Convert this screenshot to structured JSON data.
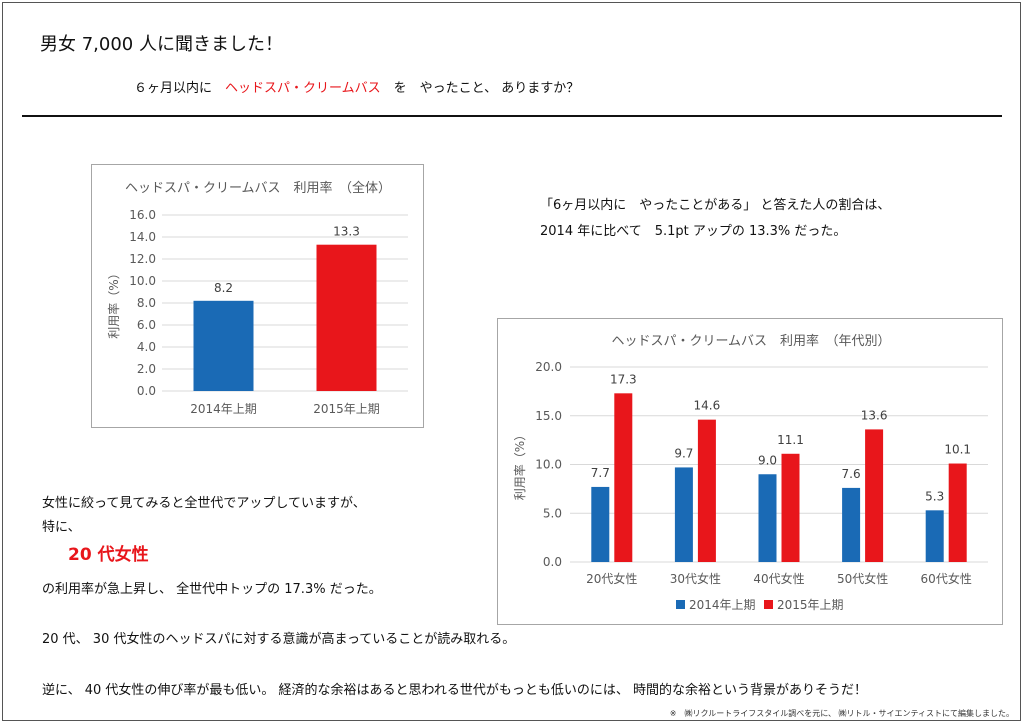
{
  "page": {
    "title": "男女 7,000 人に聞きました！",
    "question": {
      "prefix": "６ヶ月以内に　",
      "highlight": "ヘッドスパ・クリームバス",
      "suffix": "　を　やったこと、 ありますか？"
    },
    "summary": {
      "line1": "「6ヶ月以内に　やったことがある」 と答えた人の割合は、",
      "line2": "2014 年に比べて　5.1pt アップの 13.3% だった。"
    },
    "body": {
      "line1": "女性に絞って見てみると全世代でアップしていますが、",
      "line2": "特に、",
      "highlight": "20 代女性",
      "line3": "の利用率が急上昇し、 全世代中トップの 17.3% だった。",
      "line4": "20 代、 30 代女性のヘッドスパに対する意識が高まっていることが読み取れる。",
      "line5": "逆に、 40 代女性の伸び率が最も低い。 経済的な余裕はあると思われる世代がもっとも低いのには、 時間的な余裕という背景がありそうだ！"
    },
    "source": "※　㈱リクルートライフスタイル調べを元に、 ㈱リトル・サイエンティストにて編集しました。"
  },
  "colors": {
    "series_2014": "#1a6ab5",
    "series_2015": "#e8161b",
    "accent": "#e8161b"
  },
  "chart_data": [
    {
      "type": "bar",
      "title": "ヘッドスパ・クリームバス　利用率　（全体）",
      "ylabel": "利用率（%）",
      "ylim": [
        0,
        16
      ],
      "yticks": [
        "0.0",
        "2.0",
        "4.0",
        "6.0",
        "8.0",
        "10.0",
        "12.0",
        "14.0",
        "16.0"
      ],
      "grid": true,
      "categories": [
        "2014年上期",
        "2015年上期"
      ],
      "values": [
        8.2,
        13.3
      ],
      "value_labels": [
        "8.2",
        "13.3"
      ],
      "bar_colors": [
        "#1a6ab5",
        "#e8161b"
      ]
    },
    {
      "type": "bar",
      "title": "ヘッドスパ・クリームバス　利用率　（年代別）",
      "ylabel": "利用率（%）",
      "ylim": [
        0,
        20
      ],
      "yticks": [
        "0.0",
        "5.0",
        "10.0",
        "15.0",
        "20.0"
      ],
      "grid": true,
      "legend": "bottom",
      "categories": [
        "20代女性",
        "30代女性",
        "40代女性",
        "50代女性",
        "60代女性"
      ],
      "series": [
        {
          "name": "2014年上期",
          "values": [
            7.7,
            9.7,
            9.0,
            7.6,
            5.3
          ],
          "value_labels": [
            "7.7",
            "9.7",
            "9.0",
            "7.6",
            "5.3"
          ],
          "color": "#1a6ab5"
        },
        {
          "name": "2015年上期",
          "values": [
            17.3,
            14.6,
            11.1,
            13.6,
            10.1
          ],
          "value_labels": [
            "17.3",
            "14.6",
            "11.1",
            "13.6",
            "10.1"
          ],
          "color": "#e8161b"
        }
      ]
    }
  ]
}
